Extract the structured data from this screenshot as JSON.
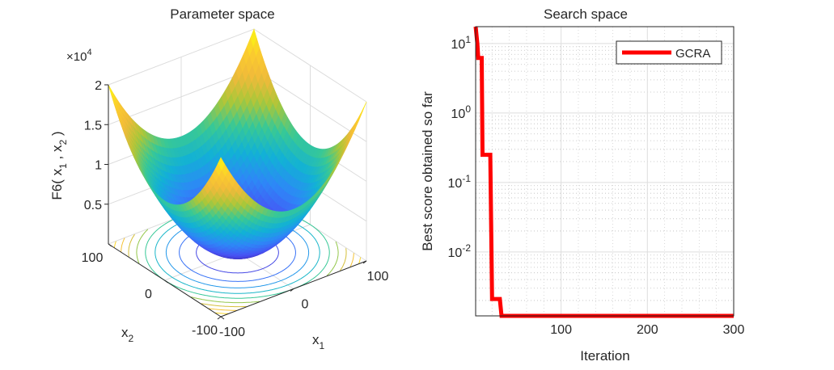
{
  "chart_data": [
    {
      "type": "surface",
      "title": "Parameter space",
      "function": "F6(x1,x2) = x1^2 + x2^2",
      "xlabel": "x",
      "xlabel_sub": "1",
      "ylabel": "x",
      "ylabel_sub": "2",
      "zlabel_parts": [
        "F6( x",
        "1",
        " , x",
        "2",
        " )"
      ],
      "x_range": [
        -100,
        100
      ],
      "y_range": [
        -100,
        100
      ],
      "z_range": [
        0,
        20000
      ],
      "x_ticks": [
        "-100",
        "0",
        "100"
      ],
      "y_ticks": [
        "-100",
        "0",
        "100"
      ],
      "z_ticks": [
        "0.5",
        "1",
        "1.5",
        "2"
      ],
      "z_tick_values": [
        5000,
        10000,
        15000,
        20000
      ],
      "z_exponent_prefix": "×10",
      "z_exponent": "4",
      "contour_levels": [
        2000,
        4000,
        6000,
        8000,
        10000,
        12000,
        14000,
        16000,
        18000
      ],
      "colormap": "parula"
    },
    {
      "type": "line",
      "title": "Search space",
      "xlabel": "Iteration",
      "ylabel": "Best score obtained so far",
      "xlim": [
        1,
        300
      ],
      "ylim": [
        0.0012,
        17.5
      ],
      "yscale": "log",
      "x_ticks": [
        "100",
        "200",
        "300"
      ],
      "x_tick_values": [
        100,
        200,
        300
      ],
      "y_ticks": [
        {
          "base": "10",
          "exp": "1",
          "value": 10
        },
        {
          "base": "10",
          "exp": "0",
          "value": 1
        },
        {
          "base": "10",
          "exp": "-1",
          "value": 0.1
        },
        {
          "base": "10",
          "exp": "-2",
          "value": 0.01
        }
      ],
      "grid": true,
      "legend_position": "top-right",
      "series": [
        {
          "name": "GCRA",
          "color": "#ff0000",
          "x": [
            1,
            3,
            4,
            8,
            9,
            18,
            20,
            29,
            31,
            300
          ],
          "y": [
            17.5,
            10,
            6.2,
            6.2,
            0.25,
            0.25,
            0.0021,
            0.0021,
            0.0012,
            0.0012
          ]
        }
      ]
    }
  ]
}
